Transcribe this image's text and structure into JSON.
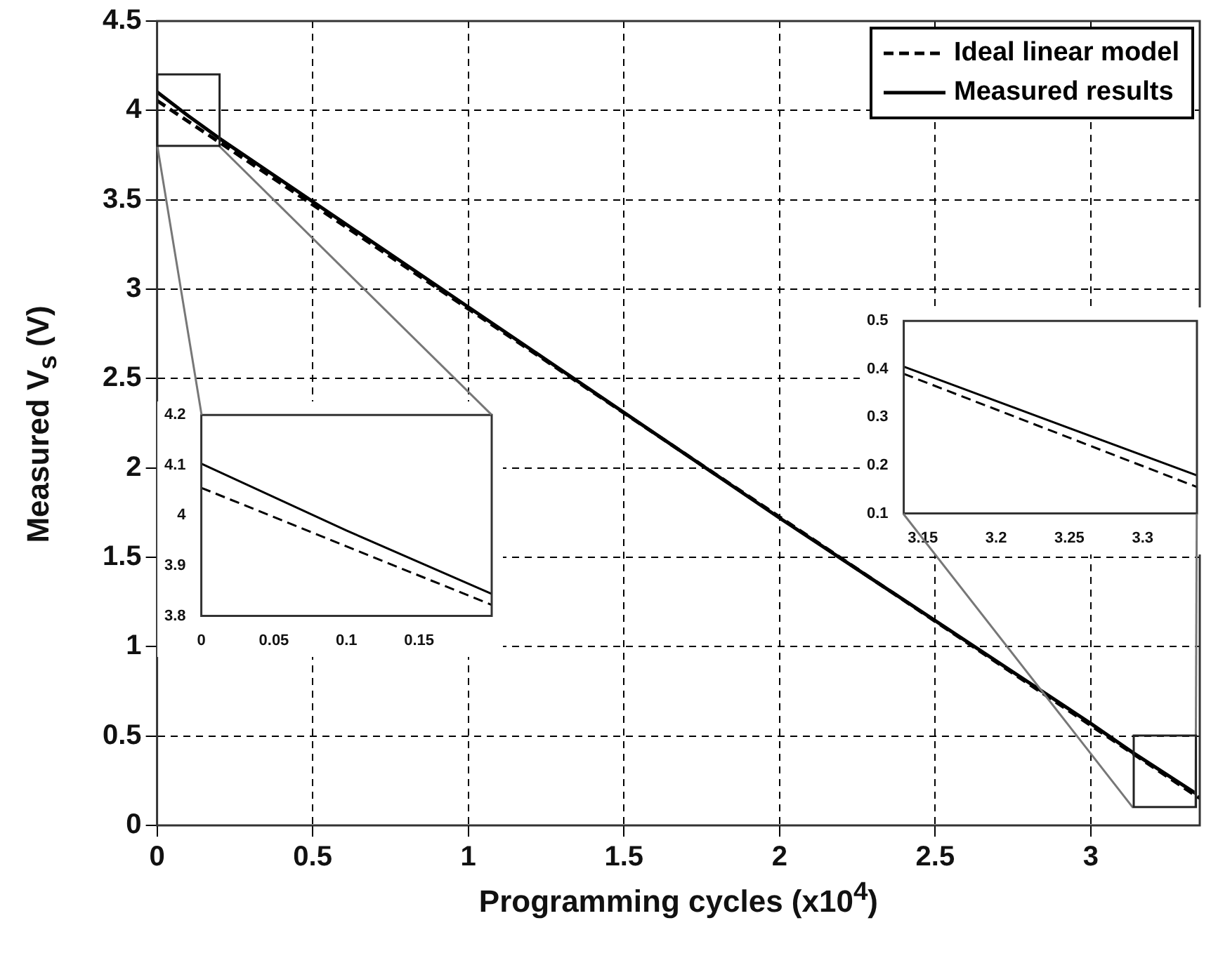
{
  "chart_data": [
    {
      "type": "line",
      "xlabel": "Programming cycles (x10$^{4}$)",
      "ylabel": "Measured V$_{s}$ (V)",
      "xlim": [
        0,
        3.35
      ],
      "xticks": [
        0,
        0.5,
        1,
        1.5,
        2,
        2.5,
        3
      ],
      "ylim": [
        0,
        4.5
      ],
      "yticks": [
        0,
        0.5,
        1,
        1.5,
        2,
        2.5,
        3,
        3.5,
        4,
        4.5
      ],
      "grid": true,
      "legend": "top right",
      "marker": "none",
      "series": [
        {
          "name": "Ideal linear model",
          "color": "#000000",
          "line_style": "dashed",
          "x": [
            0,
            3.35
          ],
          "values": [
            4.055,
            0.152
          ]
        },
        {
          "name": "Measured results",
          "color": "#000000",
          "line_style": "solid",
          "x": [
            0,
            0.1,
            0.2,
            1,
            2,
            3,
            3.137,
            3.337
          ],
          "values": [
            4.103,
            3.97,
            3.844,
            2.9,
            1.72,
            0.57,
            0.405,
            0.179
          ]
        }
      ]
    },
    {
      "type": "line",
      "xlim": [
        0,
        0.2
      ],
      "xticks": [
        0,
        0.05,
        0.1,
        0.15
      ],
      "ylim": [
        3.8,
        4.2
      ],
      "yticks": [
        3.8,
        3.9,
        4,
        4.1,
        4.2
      ],
      "marker": "none",
      "series": [
        {
          "color": "#000000",
          "line_style": "dashed",
          "x": [
            0,
            0.2
          ],
          "values": [
            4.055,
            3.822
          ]
        },
        {
          "color": "#000000",
          "line_style": "solid",
          "x": [
            0,
            0.1,
            0.2
          ],
          "values": [
            4.103,
            3.97,
            3.844
          ]
        }
      ]
    },
    {
      "type": "line",
      "xlim": [
        3.137,
        3.337
      ],
      "xticks": [
        3.15,
        3.2,
        3.25,
        3.3
      ],
      "ylim": [
        0.1,
        0.5
      ],
      "yticks": [
        0.1,
        0.2,
        0.3,
        0.4,
        0.5
      ],
      "marker": "none",
      "series": [
        {
          "color": "#000000",
          "line_style": "dashed",
          "x": [
            3.137,
            3.337
          ],
          "values": [
            0.39,
            0.155
          ]
        },
        {
          "color": "#000000",
          "line_style": "solid",
          "x": [
            3.137,
            3.337
          ],
          "values": [
            0.405,
            0.179
          ]
        }
      ]
    }
  ]
}
